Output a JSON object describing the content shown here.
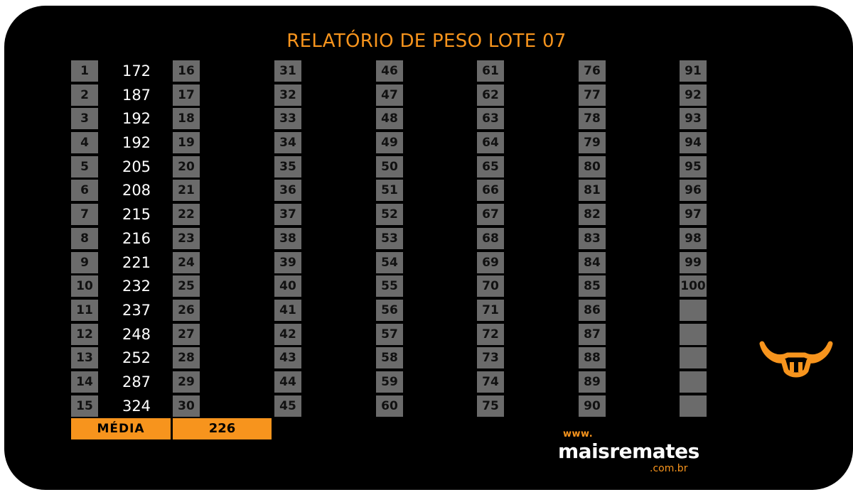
{
  "title": "RELATÓRIO DE PESO LOTE 07",
  "columns": [
    {
      "numbers": [
        "1",
        "2",
        "3",
        "4",
        "5",
        "6",
        "7",
        "8",
        "9",
        "10",
        "11",
        "12",
        "13",
        "14",
        "15"
      ],
      "values": [
        "172",
        "187",
        "192",
        "192",
        "205",
        "208",
        "215",
        "216",
        "221",
        "232",
        "237",
        "248",
        "252",
        "287",
        "324"
      ]
    },
    {
      "numbers": [
        "16",
        "17",
        "18",
        "19",
        "20",
        "21",
        "22",
        "23",
        "24",
        "25",
        "26",
        "27",
        "28",
        "29",
        "30"
      ],
      "values": []
    },
    {
      "numbers": [
        "31",
        "32",
        "33",
        "34",
        "35",
        "36",
        "37",
        "38",
        "39",
        "40",
        "41",
        "42",
        "43",
        "44",
        "45"
      ],
      "values": []
    },
    {
      "numbers": [
        "46",
        "47",
        "48",
        "49",
        "50",
        "51",
        "52",
        "53",
        "54",
        "55",
        "56",
        "57",
        "58",
        "59",
        "60"
      ],
      "values": []
    },
    {
      "numbers": [
        "61",
        "62",
        "63",
        "64",
        "65",
        "66",
        "67",
        "68",
        "69",
        "70",
        "71",
        "72",
        "73",
        "74",
        "75"
      ],
      "values": []
    },
    {
      "numbers": [
        "76",
        "77",
        "78",
        "79",
        "80",
        "81",
        "82",
        "83",
        "84",
        "85",
        "86",
        "87",
        "88",
        "89",
        "90"
      ],
      "values": []
    },
    {
      "numbers": [
        "91",
        "92",
        "93",
        "94",
        "95",
        "96",
        "97",
        "98",
        "99",
        "100",
        "",
        "",
        "",
        "",
        ""
      ],
      "values": []
    }
  ],
  "summary": {
    "label": "MÉDIA",
    "value": "226"
  },
  "logo": {
    "www": "www.",
    "name": "maisremates",
    "domain": ".com.br"
  },
  "colors": {
    "accent": "#f7941d",
    "cell": "#6b6b6b",
    "background": "#000000"
  },
  "icons": {
    "brand": "bull-head-icon"
  }
}
